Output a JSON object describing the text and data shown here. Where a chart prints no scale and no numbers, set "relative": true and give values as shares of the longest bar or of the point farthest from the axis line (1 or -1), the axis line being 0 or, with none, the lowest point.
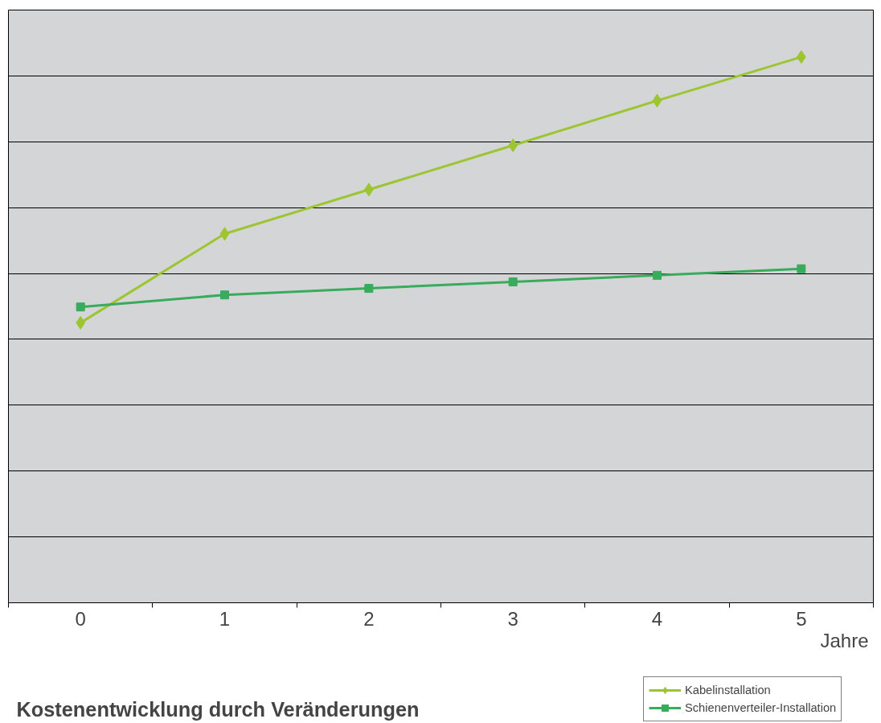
{
  "chart_data": {
    "type": "line",
    "title": "Kostenentwicklung durch Veränderungen",
    "xlabel": "Jahre",
    "categories": [
      "0",
      "1",
      "2",
      "3",
      "4",
      "5"
    ],
    "relative": true,
    "grid": "y",
    "legend": "bottom right",
    "series": [
      {
        "name": "Kabelinstallation",
        "color": "#9dc532",
        "marker": "diamond",
        "values": [
          0.513,
          0.676,
          0.757,
          0.838,
          0.92,
          1
        ]
      },
      {
        "name": "Schienenverteiler-Installation",
        "color": "#38ab5c",
        "marker": "square",
        "values": [
          0.542,
          0.564,
          0.576,
          0.588,
          0.6,
          0.612
        ]
      }
    ]
  }
}
